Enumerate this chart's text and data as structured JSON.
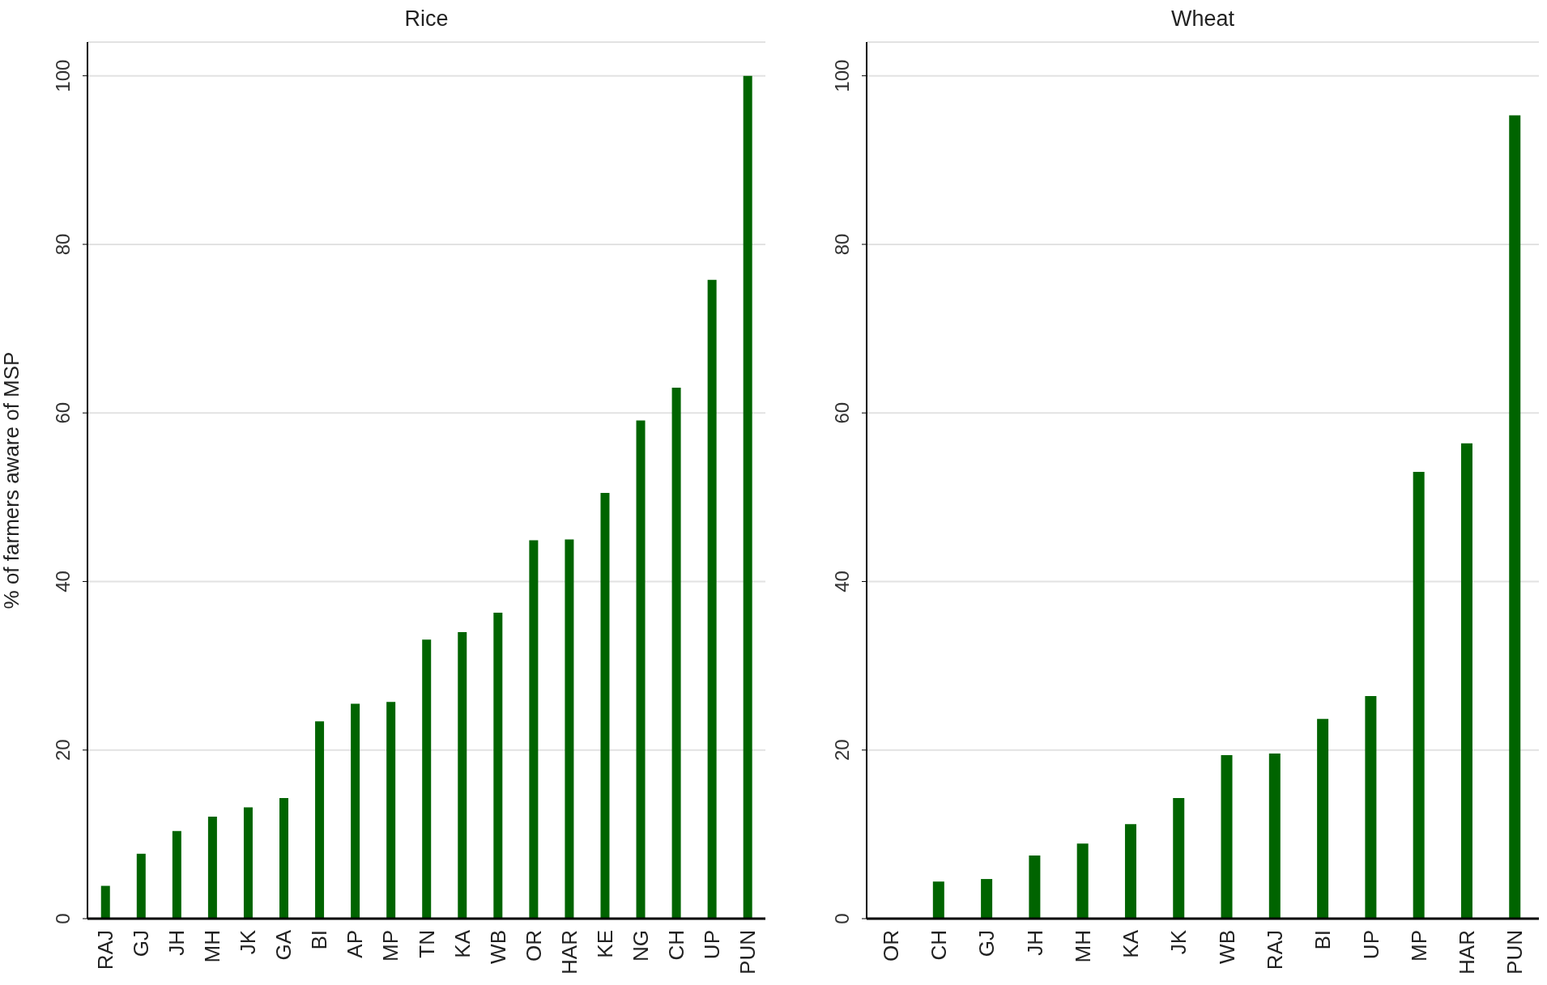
{
  "chart_data": [
    {
      "type": "bar",
      "title": "Rice",
      "ylabel": "% of farmers aware of MSP",
      "categories": [
        "RAJ",
        "GJ",
        "JH",
        "MH",
        "JK",
        "GA",
        "BI",
        "AP",
        "MP",
        "TN",
        "KA",
        "WB",
        "OR",
        "HAR",
        "KE",
        "NG",
        "CH",
        "UP",
        "PUN"
      ],
      "values": [
        3.9,
        7.7,
        10.4,
        12.1,
        13.2,
        14.3,
        23.4,
        25.5,
        25.7,
        33.1,
        34.0,
        36.3,
        44.9,
        45.0,
        50.5,
        59.1,
        63.0,
        75.8,
        100
      ],
      "color": "#006400",
      "ylim": [
        0,
        104
      ],
      "yticks": [
        0,
        20,
        40,
        60,
        80,
        100
      ],
      "grid": "y"
    },
    {
      "type": "bar",
      "title": "Wheat",
      "categories": [
        "OR",
        "CH",
        "GJ",
        "JH",
        "MH",
        "KA",
        "JK",
        "WB",
        "RAJ",
        "BI",
        "UP",
        "MP",
        "HAR",
        "PUN"
      ],
      "values": [
        0,
        4.4,
        4.7,
        7.5,
        8.9,
        11.2,
        14.3,
        19.4,
        19.6,
        23.7,
        26.4,
        53.0,
        56.4,
        95.3
      ],
      "color": "#006400",
      "ylim": [
        0,
        104
      ],
      "yticks": [
        0,
        20,
        40,
        60,
        80,
        100
      ],
      "grid": "y"
    }
  ]
}
